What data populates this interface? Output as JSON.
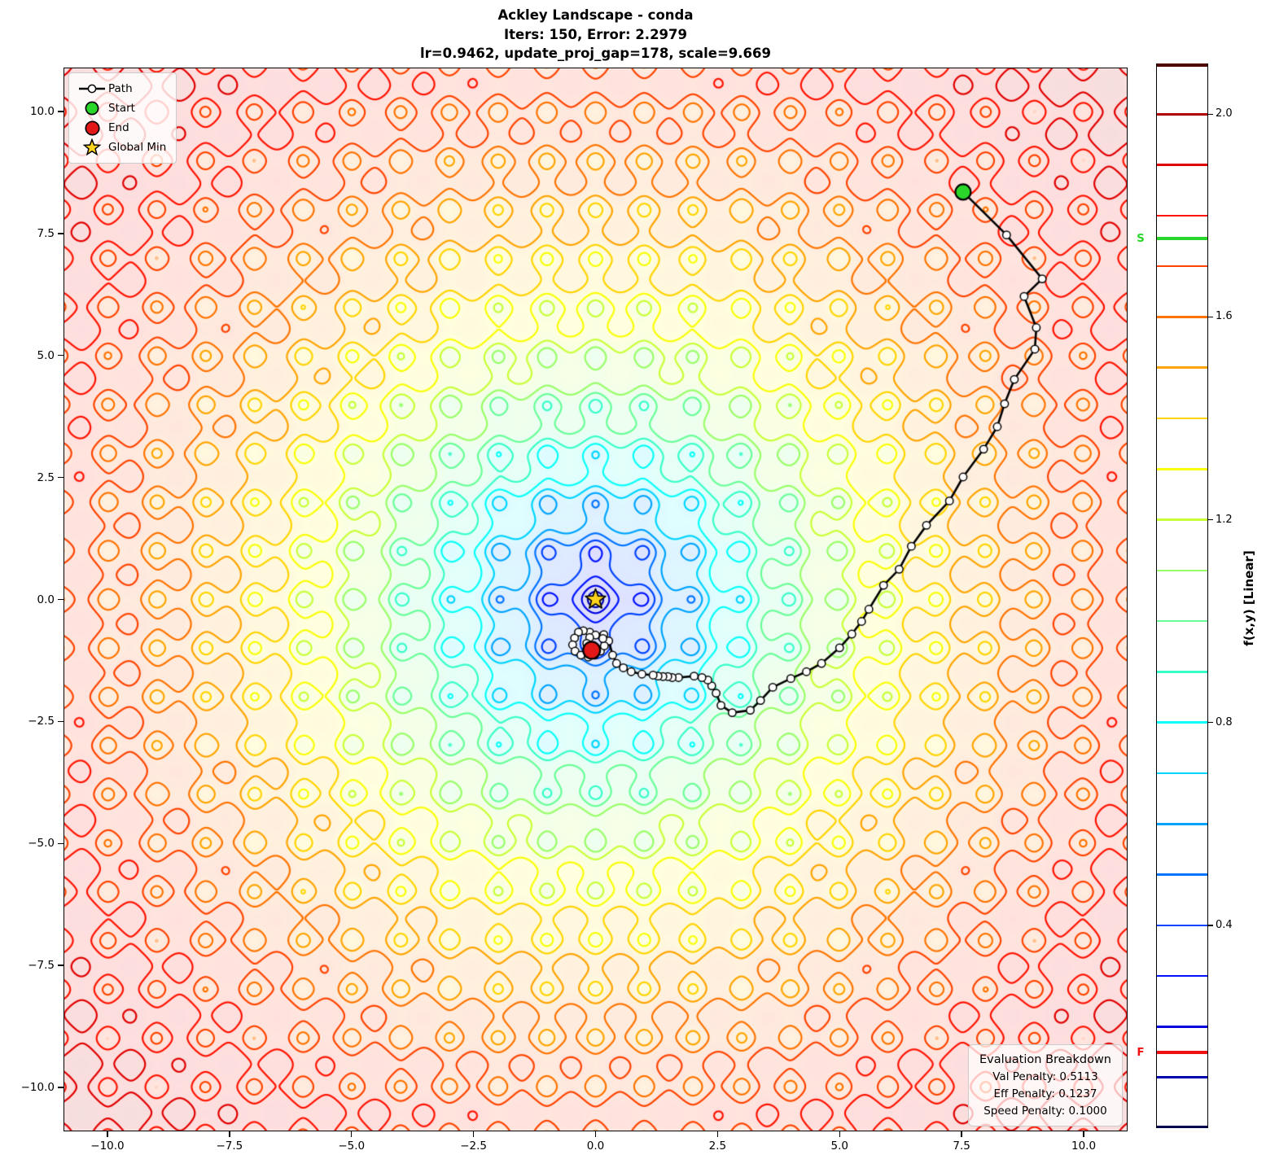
{
  "title": {
    "line1": "Ackley Landscape - conda",
    "line2": "Iters: 150, Error: 2.2979",
    "line3": "lr=0.9462, update_proj_gap=178, scale=9.669"
  },
  "legend": {
    "items": [
      {
        "label": "Path"
      },
      {
        "label": "Start"
      },
      {
        "label": "End"
      },
      {
        "label": "Global Min"
      }
    ]
  },
  "axes": {
    "x_ticks": [
      {
        "label": "−10.0",
        "value": -10
      },
      {
        "label": "−7.5",
        "value": -7.5
      },
      {
        "label": "−5.0",
        "value": -5
      },
      {
        "label": "−2.5",
        "value": -2.5
      },
      {
        "label": "0.0",
        "value": 0
      },
      {
        "label": "2.5",
        "value": 2.5
      },
      {
        "label": "5.0",
        "value": 5
      },
      {
        "label": "7.5",
        "value": 7.5
      },
      {
        "label": "10.0",
        "value": 10
      }
    ],
    "y_ticks": [
      {
        "label": "10.0",
        "value": 10
      },
      {
        "label": "7.5",
        "value": 7.5
      },
      {
        "label": "5.0",
        "value": 5
      },
      {
        "label": "2.5",
        "value": 2.5
      },
      {
        "label": "0.0",
        "value": 0
      },
      {
        "label": "−2.5",
        "value": -2.5
      },
      {
        "label": "−5.0",
        "value": -5
      },
      {
        "label": "−7.5",
        "value": -7.5
      },
      {
        "label": "−10.0",
        "value": -10
      }
    ]
  },
  "colorbar": {
    "label": "f(x,y) [Linear]",
    "ticks": [
      {
        "label": "2.0",
        "value": 2.0
      },
      {
        "label": "1.6",
        "value": 1.6
      },
      {
        "label": "1.2",
        "value": 1.2
      },
      {
        "label": "0.8",
        "value": 0.8
      },
      {
        "label": "0.4",
        "value": 0.4
      }
    ],
    "start_marker": {
      "label": "S",
      "value": 1.755,
      "color": "#2bd62b"
    },
    "end_marker": {
      "label": "F",
      "value": 0.149,
      "color": "#ee1111"
    }
  },
  "evaluation": {
    "title": "Evaluation Breakdown",
    "lines": [
      "Val Penalty: 0.5113",
      "Eff Penalty: 0.1237",
      "Speed Penalty: 0.1000"
    ]
  },
  "chart_data": {
    "type": "contour",
    "function": "ackley",
    "title": "Ackley Landscape - conda",
    "iterations": 150,
    "error": 2.2979,
    "params": {
      "lr": 0.9462,
      "update_proj_gap": 178,
      "scale": 9.669
    },
    "x_range": [
      -10.9,
      10.9
    ],
    "y_range": [
      -10.9,
      10.9
    ],
    "x_ticks": [
      -10,
      -7.5,
      -5,
      -2.5,
      0,
      2.5,
      5,
      7.5,
      10
    ],
    "y_ticks": [
      -10,
      -7.5,
      -5,
      -2.5,
      0,
      2.5,
      5,
      7.5,
      10
    ],
    "value_divisor": 10,
    "colorbar": {
      "range": [
        0,
        2.1
      ],
      "level_step": 0.1,
      "num_levels": 20,
      "scale_type": "Linear"
    },
    "colors": {
      "path": "#000000",
      "waypoint_fill": "#ffffff",
      "start": "#2bd62b",
      "end": "#e21717",
      "global_min": "#ffd21e",
      "tint_alpha": 0.13
    },
    "start": [
      7.53,
      8.35
    ],
    "end": [
      -0.08,
      -1.04
    ],
    "global_min": [
      0,
      0
    ],
    "start_value": 1.755,
    "end_value": 0.149,
    "evaluation": {
      "val_penalty": 0.5113,
      "eff_penalty": 0.1237,
      "speed_penalty": 0.1
    },
    "path": [
      [
        7.53,
        8.35
      ],
      [
        8.42,
        7.47
      ],
      [
        9.15,
        6.57
      ],
      [
        8.78,
        6.21
      ],
      [
        9.03,
        5.57
      ],
      [
        9.0,
        5.13
      ],
      [
        8.58,
        4.51
      ],
      [
        8.38,
        4.01
      ],
      [
        8.23,
        3.54
      ],
      [
        7.95,
        3.08
      ],
      [
        7.53,
        2.51
      ],
      [
        7.25,
        2.02
      ],
      [
        6.78,
        1.52
      ],
      [
        6.47,
        1.09
      ],
      [
        6.22,
        0.62
      ],
      [
        5.9,
        0.29
      ],
      [
        5.6,
        -0.2
      ],
      [
        5.45,
        -0.45
      ],
      [
        5.25,
        -0.71
      ],
      [
        5.0,
        -0.99
      ],
      [
        4.63,
        -1.31
      ],
      [
        4.32,
        -1.48
      ],
      [
        4.0,
        -1.62
      ],
      [
        3.63,
        -1.8
      ],
      [
        3.38,
        -2.07
      ],
      [
        3.17,
        -2.27
      ],
      [
        2.8,
        -2.32
      ],
      [
        2.57,
        -2.17
      ],
      [
        2.47,
        -1.92
      ],
      [
        2.38,
        -1.77
      ],
      [
        2.3,
        -1.65
      ],
      [
        2.18,
        -1.6
      ],
      [
        2.02,
        -1.57
      ],
      [
        1.7,
        -1.6
      ],
      [
        1.57,
        -1.6
      ],
      [
        1.48,
        -1.58
      ],
      [
        1.38,
        -1.58
      ],
      [
        1.28,
        -1.57
      ],
      [
        1.18,
        -1.55
      ],
      [
        0.95,
        -1.53
      ],
      [
        0.73,
        -1.48
      ],
      [
        0.57,
        -1.4
      ],
      [
        0.43,
        -1.31
      ],
      [
        0.35,
        -1.14
      ],
      [
        0.27,
        -0.85
      ],
      [
        0.17,
        -0.72
      ],
      [
        -0.12,
        -0.67
      ],
      [
        -0.25,
        -0.64
      ],
      [
        -0.35,
        -0.67
      ],
      [
        -0.43,
        -0.79
      ],
      [
        -0.47,
        -0.93
      ],
      [
        -0.42,
        -1.06
      ],
      [
        -0.3,
        -1.14
      ],
      [
        -0.15,
        -1.18
      ],
      [
        -0.02,
        -1.14
      ],
      [
        0.1,
        -1.06
      ],
      [
        0.18,
        -0.95
      ],
      [
        0.15,
        -0.8
      ],
      [
        0.0,
        -0.73
      ],
      [
        -0.12,
        -0.78
      ],
      [
        -0.18,
        -0.9
      ],
      [
        -0.1,
        -1.0
      ],
      [
        -0.08,
        -1.04
      ]
    ]
  }
}
